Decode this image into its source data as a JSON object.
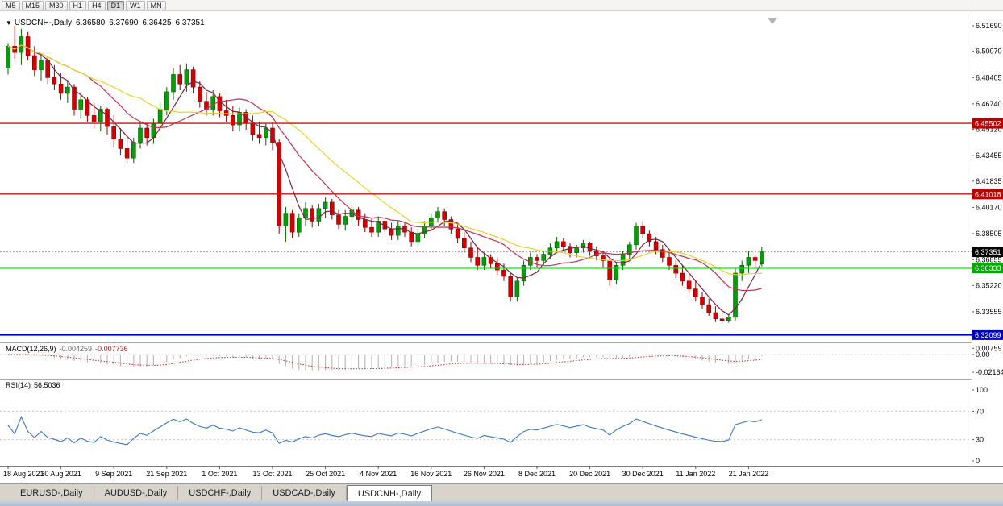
{
  "toolbar": {
    "timeframes": [
      "M5",
      "M15",
      "M30",
      "H1",
      "H4",
      "D1",
      "W1",
      "MN"
    ],
    "active": "D1"
  },
  "title": {
    "dropdown_icon": "▼",
    "symbol": "USDCNH-,Daily",
    "open": "6.36580",
    "high": "6.37690",
    "low": "6.36425",
    "close": "6.37351"
  },
  "indicators": {
    "macd": {
      "label": "MACD(12,26,9)",
      "value_main": "-0.004259",
      "value_signal": "-0.007736",
      "axis_ticks": [
        {
          "value": 0.00759,
          "text": "0.00759"
        },
        {
          "value": 0.0,
          "text": "0.00"
        },
        {
          "value": -0.02164,
          "text": "-0.02164"
        }
      ],
      "histogram_color": "#b0b0b0",
      "signal_color": "#cc2222"
    },
    "rsi": {
      "label": "RSI(14)",
      "value": "56.5036",
      "axis_ticks": [
        100,
        70,
        30,
        0
      ],
      "levels": [
        70,
        30
      ],
      "line_color": "#3a78c2",
      "level_color": "#c8c8c8"
    }
  },
  "price_axis": {
    "ticks": [
      6.5169,
      6.5007,
      6.48405,
      6.4674,
      6.4512,
      6.43455,
      6.41835,
      6.4017,
      6.38505,
      6.36855,
      6.3522,
      6.33555
    ]
  },
  "hlines": [
    {
      "price": 6.45502,
      "label": "6.45502",
      "color": "#cc1111",
      "label_bg": "#bb0000",
      "width": 1.4
    },
    {
      "price": 6.41018,
      "label": "6.41018",
      "color": "#cc1111",
      "label_bg": "#bb0000",
      "width": 1.4
    },
    {
      "price": 6.36333,
      "label": "6.36333",
      "color": "#00cc00",
      "label_bg": "#00aa00",
      "width": 2
    },
    {
      "price": 6.32099,
      "label": "6.32099",
      "color": "#0000d0",
      "label_bg": "#0000bb",
      "width": 2.4
    }
  ],
  "current_price": {
    "price": 6.37351,
    "label": "6.37351",
    "label_bg": "#000000",
    "line_color": "#999999"
  },
  "x_axis": {
    "labels": [
      "18 Aug 2021",
      "30 Aug 2021",
      "9 Sep 2021",
      "21 Sep 2021",
      "1 Oct 2021",
      "13 Oct 2021",
      "25 Oct 2021",
      "4 Nov 2021",
      "16 Nov 2021",
      "26 Nov 2021",
      "8 Dec 2021",
      "20 Dec 2021",
      "30 Dec 2021",
      "11 Jan 2022",
      "21 Jan 2022"
    ],
    "indices": [
      0,
      8,
      16,
      24,
      32,
      40,
      48,
      56,
      64,
      72,
      80,
      88,
      96,
      104,
      112
    ]
  },
  "tabs": {
    "items": [
      "EURUSD-,Daily",
      "AUDUSD-,Daily",
      "USDCHF-,Daily",
      "USDCAD-,Daily",
      "USDCNH-,Daily"
    ],
    "active_index": 4
  },
  "chart_data": {
    "type": "candlestick",
    "symbol": "USDCNH",
    "timeframe": "Daily",
    "up_color": "#0a9b0a",
    "up_border": "#045e04",
    "down_color": "#d40000",
    "down_border": "#8e0000",
    "moving_averages": [
      {
        "period": 5,
        "color": "#7a2044"
      },
      {
        "period": 13,
        "color": "#c23252"
      },
      {
        "period": 21,
        "color": "#e8d22a"
      }
    ],
    "price_range_top": 6.523,
    "price_range_bottom": 6.316,
    "candles": [
      [
        6.49,
        6.506,
        6.486,
        6.504
      ],
      [
        6.504,
        6.5169,
        6.496,
        6.5
      ],
      [
        6.5,
        6.515,
        6.492,
        6.51
      ],
      [
        6.51,
        6.513,
        6.495,
        6.498
      ],
      [
        6.498,
        6.504,
        6.485,
        6.489
      ],
      [
        6.489,
        6.499,
        6.482,
        6.495
      ],
      [
        6.495,
        6.498,
        6.48,
        6.484
      ],
      [
        6.484,
        6.492,
        6.476,
        6.48
      ],
      [
        6.48,
        6.487,
        6.47,
        6.474
      ],
      [
        6.474,
        6.482,
        6.468,
        6.478
      ],
      [
        6.478,
        6.48,
        6.46,
        6.464
      ],
      [
        6.464,
        6.473,
        6.458,
        6.47
      ],
      [
        6.47,
        6.472,
        6.456,
        6.46
      ],
      [
        6.46,
        6.468,
        6.452,
        6.456
      ],
      [
        6.456,
        6.466,
        6.45,
        6.464
      ],
      [
        6.464,
        6.465,
        6.448,
        6.453
      ],
      [
        6.453,
        6.46,
        6.44,
        6.445
      ],
      [
        6.445,
        6.452,
        6.435,
        6.439
      ],
      [
        6.439,
        6.448,
        6.43,
        6.433
      ],
      [
        6.433,
        6.446,
        6.43,
        6.443
      ],
      [
        6.443,
        6.456,
        6.439,
        6.452
      ],
      [
        6.452,
        6.455,
        6.441,
        6.446
      ],
      [
        6.446,
        6.458,
        6.442,
        6.455
      ],
      [
        6.455,
        6.468,
        6.451,
        6.464
      ],
      [
        6.464,
        6.478,
        6.46,
        6.475
      ],
      [
        6.475,
        6.49,
        6.47,
        6.486
      ],
      [
        6.486,
        6.492,
        6.476,
        6.48
      ],
      [
        6.48,
        6.493,
        6.475,
        6.489
      ],
      [
        6.489,
        6.491,
        6.474,
        6.478
      ],
      [
        6.478,
        6.482,
        6.465,
        6.469
      ],
      [
        6.469,
        6.475,
        6.46,
        6.464
      ],
      [
        6.464,
        6.476,
        6.46,
        6.472
      ],
      [
        6.472,
        6.474,
        6.459,
        6.463
      ],
      [
        6.463,
        6.47,
        6.456,
        6.46
      ],
      [
        6.46,
        6.466,
        6.45,
        6.454
      ],
      [
        6.454,
        6.465,
        6.45,
        6.462
      ],
      [
        6.462,
        6.464,
        6.451,
        6.455
      ],
      [
        6.455,
        6.46,
        6.444,
        6.448
      ],
      [
        6.448,
        6.456,
        6.442,
        6.446
      ],
      [
        6.446,
        6.455,
        6.441,
        6.452
      ],
      [
        6.452,
        6.456,
        6.438,
        6.443
      ],
      [
        6.443,
        6.445,
        6.385,
        6.39
      ],
      [
        6.39,
        6.402,
        6.38,
        6.398
      ],
      [
        6.398,
        6.4,
        6.382,
        6.386
      ],
      [
        6.386,
        6.398,
        6.383,
        6.395
      ],
      [
        6.395,
        6.405,
        6.39,
        6.401
      ],
      [
        6.401,
        6.403,
        6.389,
        6.393
      ],
      [
        6.393,
        6.404,
        6.39,
        6.401
      ],
      [
        6.401,
        6.408,
        6.395,
        6.405
      ],
      [
        6.405,
        6.407,
        6.394,
        6.397
      ],
      [
        6.397,
        6.4,
        6.388,
        6.391
      ],
      [
        6.391,
        6.4,
        6.387,
        6.396
      ],
      [
        6.396,
        6.403,
        6.392,
        6.4
      ],
      [
        6.4,
        6.402,
        6.39,
        6.394
      ],
      [
        6.394,
        6.398,
        6.386,
        6.389
      ],
      [
        6.389,
        6.395,
        6.383,
        6.386
      ],
      [
        6.386,
        6.396,
        6.383,
        6.393
      ],
      [
        6.393,
        6.395,
        6.385,
        6.388
      ],
      [
        6.388,
        6.392,
        6.381,
        6.384
      ],
      [
        6.384,
        6.393,
        6.381,
        6.39
      ],
      [
        6.39,
        6.392,
        6.383,
        6.386
      ],
      [
        6.386,
        6.389,
        6.377,
        6.38
      ],
      [
        6.38,
        6.388,
        6.377,
        6.385
      ],
      [
        6.385,
        6.393,
        6.382,
        6.39
      ],
      [
        6.39,
        6.398,
        6.387,
        6.395
      ],
      [
        6.395,
        6.402,
        6.392,
        6.399
      ],
      [
        6.399,
        6.401,
        6.39,
        6.394
      ],
      [
        6.394,
        6.396,
        6.385,
        6.388
      ],
      [
        6.388,
        6.391,
        6.379,
        6.382
      ],
      [
        6.382,
        6.386,
        6.373,
        6.376
      ],
      [
        6.376,
        6.38,
        6.367,
        6.37
      ],
      [
        6.37,
        6.376,
        6.362,
        6.365
      ],
      [
        6.365,
        6.373,
        6.362,
        6.37
      ],
      [
        6.37,
        6.372,
        6.363,
        6.366
      ],
      [
        6.366,
        6.37,
        6.359,
        6.362
      ],
      [
        6.362,
        6.366,
        6.355,
        6.358
      ],
      [
        6.358,
        6.36,
        6.342,
        6.345
      ],
      [
        6.345,
        6.357,
        6.342,
        6.355
      ],
      [
        6.355,
        6.368,
        6.352,
        6.365
      ],
      [
        6.365,
        6.373,
        6.362,
        6.37
      ],
      [
        6.37,
        6.372,
        6.364,
        6.368
      ],
      [
        6.368,
        6.374,
        6.365,
        6.372
      ],
      [
        6.372,
        6.379,
        6.369,
        6.376
      ],
      [
        6.376,
        6.383,
        6.373,
        6.38
      ],
      [
        6.38,
        6.382,
        6.374,
        6.377
      ],
      [
        6.377,
        6.379,
        6.37,
        6.373
      ],
      [
        6.373,
        6.378,
        6.37,
        6.376
      ],
      [
        6.376,
        6.381,
        6.373,
        6.379
      ],
      [
        6.379,
        6.38,
        6.371,
        6.374
      ],
      [
        6.374,
        6.377,
        6.368,
        6.371
      ],
      [
        6.371,
        6.373,
        6.364,
        6.368
      ],
      [
        6.368,
        6.37,
        6.352,
        6.356
      ],
      [
        6.356,
        6.367,
        6.353,
        6.365
      ],
      [
        6.365,
        6.374,
        6.362,
        6.372
      ],
      [
        6.372,
        6.38,
        6.369,
        6.378
      ],
      [
        6.378,
        6.392,
        6.375,
        6.39
      ],
      [
        6.39,
        6.393,
        6.382,
        6.385
      ],
      [
        6.385,
        6.387,
        6.377,
        6.38
      ],
      [
        6.38,
        6.383,
        6.372,
        6.375
      ],
      [
        6.375,
        6.378,
        6.367,
        6.37
      ],
      [
        6.37,
        6.373,
        6.362,
        6.365
      ],
      [
        6.365,
        6.368,
        6.357,
        6.36
      ],
      [
        6.36,
        6.365,
        6.352,
        6.355
      ],
      [
        6.355,
        6.359,
        6.347,
        6.35
      ],
      [
        6.35,
        6.356,
        6.342,
        6.345
      ],
      [
        6.345,
        6.348,
        6.337,
        6.34
      ],
      [
        6.34,
        6.344,
        6.333,
        6.335
      ],
      [
        6.335,
        6.339,
        6.329,
        6.331
      ],
      [
        6.331,
        6.335,
        6.328,
        6.33
      ],
      [
        6.33,
        6.334,
        6.3285,
        6.332
      ],
      [
        6.332,
        6.364,
        6.33,
        6.36
      ],
      [
        6.36,
        6.368,
        6.355,
        6.365
      ],
      [
        6.365,
        6.374,
        6.36,
        6.37
      ],
      [
        6.37,
        6.372,
        6.363,
        6.368
      ],
      [
        6.3658,
        6.3769,
        6.36425,
        6.37351
      ]
    ]
  }
}
